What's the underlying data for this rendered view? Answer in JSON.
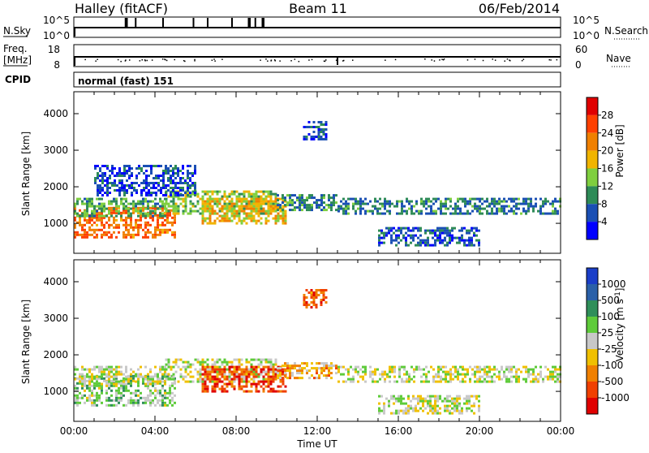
{
  "header": {
    "station": "Halley (fitACF)",
    "beam": "Beam 11",
    "date": "06/Feb/2014"
  },
  "status_panels": {
    "nsky_label": "N.Sky",
    "nsky_ticks": [
      "10^5",
      "10^0"
    ],
    "nsearch_label": "N.Search",
    "nsearch_ticks": [
      "10^5",
      "10^0"
    ],
    "freq_label": "Freq.",
    "freq_unit": "[MHz]",
    "freq_ticks": [
      "18",
      "8"
    ],
    "nave_label": "Nave",
    "nave_ticks": [
      "60",
      "0"
    ],
    "cpid_label": "CPID",
    "cpid_value": "normal (fast) 151"
  },
  "axes": {
    "ylabel": "Slant Range [km]",
    "xlabel": "Time UT",
    "yticks": [
      "1000",
      "2000",
      "3000",
      "4000"
    ],
    "xticks": [
      "00:00",
      "04:00",
      "08:00",
      "12:00",
      "16:00",
      "20:00",
      "00:00"
    ]
  },
  "colorbars": {
    "power": {
      "label": "Power [dB]",
      "ticks": [
        "4",
        "8",
        "12",
        "16",
        "20",
        "24",
        "28"
      ],
      "colors": [
        "#0000ff",
        "#1a4fb4",
        "#2e8b57",
        "#7fcf3f",
        "#f0b400",
        "#f08000",
        "#ff4000",
        "#e00000"
      ]
    },
    "velocity": {
      "label": "Velocity [m s",
      "label_sup": "-1",
      "label_end": "]",
      "ticks": [
        "1000",
        "500",
        "100",
        "25",
        "-25",
        "-100",
        "-500",
        "-1000"
      ],
      "colors": [
        "#1a3ec8",
        "#2a60a8",
        "#2f8f5a",
        "#5ecb3a",
        "#c8c8c8",
        "#f0c000",
        "#f08000",
        "#f04000",
        "#e00000"
      ]
    }
  },
  "chart_data": [
    {
      "type": "heatmap",
      "title": "Power [dB]",
      "xlabel": "Time UT",
      "ylabel": "Slant Range [km]",
      "xlim": [
        "00:00",
        "24:00"
      ],
      "ylim": [
        180,
        4600
      ],
      "clim": [
        0,
        30
      ],
      "regions": [
        {
          "t": [
            0.0,
            5.0
          ],
          "r": [
            650,
            1450
          ],
          "value": 22
        },
        {
          "t": [
            0.0,
            4.5
          ],
          "r": [
            1200,
            1700
          ],
          "value": 11
        },
        {
          "t": [
            4.5,
            10.0
          ],
          "r": [
            1300,
            1900
          ],
          "value": 13
        },
        {
          "t": [
            6.3,
            10.5
          ],
          "r": [
            1000,
            1700
          ],
          "value": 17
        },
        {
          "t": [
            10.0,
            13.0
          ],
          "r": [
            1400,
            1800
          ],
          "value": 9
        },
        {
          "t": [
            13.0,
            24.0
          ],
          "r": [
            1300,
            1700
          ],
          "value": 8
        },
        {
          "t": [
            1.0,
            6.0
          ],
          "r": [
            1800,
            2600
          ],
          "value": 5
        },
        {
          "t": [
            11.3,
            12.5
          ],
          "r": [
            3300,
            3800
          ],
          "value": 5
        },
        {
          "t": [
            15.0,
            20.0
          ],
          "r": [
            400,
            900
          ],
          "value": 6
        }
      ]
    },
    {
      "type": "heatmap",
      "title": "Velocity [m s-1]",
      "xlabel": "Time UT",
      "ylabel": "Slant Range [km]",
      "xlim": [
        "00:00",
        "24:00"
      ],
      "ylim": [
        180,
        4600
      ],
      "clim": [
        -1000,
        1000
      ],
      "regions": [
        {
          "t": [
            0.0,
            5.0
          ],
          "r": [
            650,
            1450
          ],
          "value": 150
        },
        {
          "t": [
            0.0,
            4.5
          ],
          "r": [
            1200,
            1700
          ],
          "value": 0
        },
        {
          "t": [
            4.5,
            10.0
          ],
          "r": [
            1300,
            1900
          ],
          "value": 0
        },
        {
          "t": [
            6.3,
            10.5
          ],
          "r": [
            1000,
            1700
          ],
          "value": -700
        },
        {
          "t": [
            10.0,
            13.0
          ],
          "r": [
            1400,
            1800
          ],
          "value": -300
        },
        {
          "t": [
            13.0,
            24.0
          ],
          "r": [
            1300,
            1700
          ],
          "value": 0
        },
        {
          "t": [
            11.3,
            12.5
          ],
          "r": [
            3300,
            3800
          ],
          "value": -600
        },
        {
          "t": [
            15.0,
            20.0
          ],
          "r": [
            400,
            900
          ],
          "value": 0
        }
      ]
    }
  ]
}
